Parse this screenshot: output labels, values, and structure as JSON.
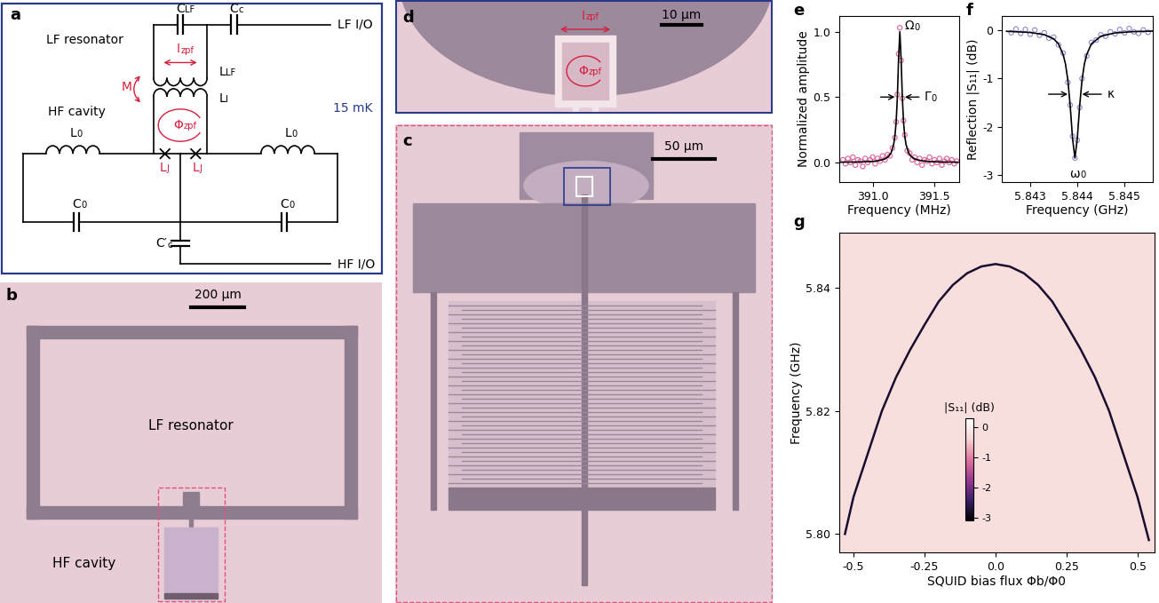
{
  "panels": {
    "a": {
      "label": "a",
      "temperature": "15 mK",
      "labels": {
        "LF_resonator": "LF resonator",
        "HF_cavity": "HF cavity",
        "LF_IO": "LF I/O",
        "HF_IO": "HF I/O",
        "C_LF": {
          "main": "C",
          "sub": "LF"
        },
        "C_c": {
          "main": "C",
          "sub": "c"
        },
        "L_LF": {
          "main": "L",
          "sub": "LF"
        },
        "L_I": {
          "main": "L",
          "sub": "I"
        },
        "L_J": {
          "main": "L",
          "sub": "J"
        },
        "L_0": {
          "main": "L",
          "sub": "0"
        },
        "C_0": {
          "main": "C",
          "sub": "0"
        },
        "C_c_prime": {
          "main": "C′",
          "sub": "c"
        },
        "I_zpf": {
          "main": "I",
          "sub": "zpf"
        },
        "Phi_zpf": {
          "main": "Φ",
          "sub": "zpf"
        },
        "M": "M"
      }
    },
    "b": {
      "label": "b",
      "scale_bar": "200 µm",
      "texts": [
        "LF resonator",
        "HF cavity"
      ]
    },
    "c": {
      "label": "c",
      "scale_bar": "50 µm"
    },
    "d": {
      "label": "d",
      "scale_bar": "10 µm",
      "I_zpf": {
        "main": "I",
        "sub": "zpf"
      },
      "Phi_zpf": {
        "main": "Φ",
        "sub": "zpf"
      }
    }
  },
  "chart_data": [
    {
      "label": "e",
      "type": "scatter",
      "xlabel": "Frequency (MHz)",
      "ylabel": "Normalized amplitude",
      "xlim": [
        390.73,
        391.7
      ],
      "ylim": [
        -0.15,
        1.12
      ],
      "xticks": [
        {
          "value": 391.0,
          "label": "391.0"
        },
        {
          "value": 391.5,
          "label": "391.5"
        }
      ],
      "yticks": [
        {
          "value": 0.0,
          "label": "0.0"
        },
        {
          "value": 0.5,
          "label": "0.5"
        },
        {
          "value": 1.0,
          "label": "1.0"
        }
      ],
      "annotations": [
        {
          "main": "Ω",
          "sub": "0"
        },
        {
          "main": "Γ",
          "sub": "0"
        }
      ],
      "series": [
        {
          "type": "scatter",
          "color": "#e0609a",
          "marker": "o",
          "x": [
            390.76,
            390.78,
            390.8,
            390.82,
            390.84,
            390.86,
            390.88,
            390.9,
            390.92,
            390.94,
            390.96,
            390.98,
            391.0,
            391.02,
            391.04,
            391.06,
            391.08,
            391.1,
            391.12,
            391.14,
            391.16,
            391.18,
            391.19,
            391.2,
            391.21,
            391.22,
            391.23,
            391.24,
            391.25,
            391.26,
            391.28,
            391.3,
            391.32,
            391.34,
            391.36,
            391.38,
            391.4,
            391.42,
            391.44,
            391.46,
            391.48,
            391.5,
            391.52,
            391.54,
            391.56,
            391.58,
            391.6,
            391.62,
            391.64,
            391.66,
            391.68
          ],
          "values": [
            0.02,
            -0.01,
            0.03,
            0.0,
            0.04,
            -0.02,
            0.02,
            0.01,
            -0.03,
            0.03,
            0.0,
            0.02,
            0.04,
            -0.01,
            0.03,
            0.01,
            0.05,
            0.02,
            0.06,
            0.05,
            0.11,
            0.19,
            0.31,
            0.52,
            0.83,
            1.03,
            0.78,
            0.49,
            0.32,
            0.21,
            0.09,
            0.07,
            0.02,
            0.04,
            0.0,
            0.03,
            -0.02,
            0.02,
            0.01,
            0.04,
            -0.01,
            0.02,
            0.0,
            0.03,
            -0.02,
            0.01,
            0.03,
            0.0,
            0.02,
            -0.01,
            0.01
          ]
        },
        {
          "type": "line",
          "color": "#000000",
          "line_style": "solid",
          "x": [
            390.74,
            390.9,
            391.0,
            391.05,
            391.1,
            391.13,
            391.15,
            391.17,
            391.18,
            391.19,
            391.2,
            391.21,
            391.22,
            391.23,
            391.24,
            391.25,
            391.26,
            391.27,
            391.29,
            391.31,
            391.34,
            391.39,
            391.45,
            391.5,
            391.6,
            391.69
          ],
          "values": [
            0.002,
            0.004,
            0.008,
            0.014,
            0.027,
            0.047,
            0.075,
            0.138,
            0.2,
            0.308,
            0.5,
            0.8,
            1.0,
            0.8,
            0.5,
            0.308,
            0.2,
            0.138,
            0.075,
            0.047,
            0.027,
            0.014,
            0.0075,
            0.005,
            0.003,
            0.002
          ]
        }
      ]
    },
    {
      "label": "f",
      "type": "scatter",
      "xlabel": "Frequency (GHz)",
      "ylabel": "Reflection |S₁₁| (dB)",
      "xlim": [
        5.8424,
        5.8456
      ],
      "ylim": [
        -3.15,
        0.3
      ],
      "xticks": [
        5.843,
        5.844,
        5.845
      ],
      "yticks": [
        -3,
        -2,
        -1,
        0
      ],
      "annotations": [
        {
          "main": "ω",
          "sub": "0"
        },
        "κ"
      ],
      "series": [
        {
          "type": "scatter",
          "color": "#8a8ad0",
          "marker": "o",
          "x": [
            5.8426,
            5.8427,
            5.8428,
            5.8429,
            5.843,
            5.8431,
            5.8432,
            5.8433,
            5.8434,
            5.8435,
            5.8436,
            5.8437,
            5.8438,
            5.84385,
            5.8439,
            5.84395,
            5.844,
            5.84405,
            5.8441,
            5.8442,
            5.8443,
            5.8444,
            5.8445,
            5.8446,
            5.8447,
            5.8448,
            5.8449,
            5.845,
            5.8451,
            5.8452,
            5.8453,
            5.8454,
            5.8455
          ],
          "values": [
            -0.05,
            0.03,
            -0.06,
            0.02,
            -0.08,
            0.01,
            -0.1,
            -0.05,
            -0.16,
            -0.14,
            -0.3,
            -0.47,
            -1.08,
            -1.55,
            -2.2,
            -2.65,
            -2.28,
            -1.6,
            -1.0,
            -0.53,
            -0.25,
            -0.2,
            -0.09,
            -0.12,
            -0.03,
            -0.07,
            0.02,
            -0.05,
            0.04,
            -0.03,
            -0.06,
            0.01,
            -0.04
          ]
        },
        {
          "type": "line",
          "color": "#000000",
          "line_style": "solid",
          "x": [
            5.8425,
            5.843,
            5.8433,
            5.8435,
            5.8436,
            5.8437,
            5.84375,
            5.8438,
            5.84385,
            5.8439,
            5.84395,
            5.844,
            5.84405,
            5.8441,
            5.84415,
            5.8442,
            5.8443,
            5.8445,
            5.8448,
            5.8452,
            5.8456
          ],
          "values": [
            -0.018,
            -0.042,
            -0.088,
            -0.176,
            -0.278,
            -0.5,
            -0.7,
            -1.03,
            -1.57,
            -2.25,
            -2.65,
            -2.25,
            -1.57,
            -1.03,
            -0.7,
            -0.5,
            -0.278,
            -0.12,
            -0.052,
            -0.024,
            -0.014
          ]
        }
      ]
    },
    {
      "label": "g",
      "type": "heatmap",
      "xlabel": "SQUID bias flux Φb/Φ0",
      "ylabel": "Frequency (GHz)",
      "xlim": [
        -0.55,
        0.56
      ],
      "ylim": [
        5.797,
        5.849
      ],
      "xticks": [
        -0.5,
        -0.25,
        0.0,
        0.25,
        0.5
      ],
      "yticks": [
        {
          "value": 5.8,
          "label": "5.80"
        },
        {
          "value": 5.82,
          "label": "5.82"
        },
        {
          "value": 5.84,
          "label": "5.84"
        }
      ],
      "background": -0.25,
      "colorbar": {
        "label": "|S₁₁| (dB)",
        "range": [
          -3.1,
          0.3
        ],
        "ticks": [
          -3,
          -2,
          -1,
          0
        ]
      },
      "series": [
        {
          "type": "line",
          "line_style": "solid",
          "level": -2.8,
          "x": [
            -0.53,
            -0.5,
            -0.45,
            -0.4,
            -0.35,
            -0.3,
            -0.25,
            -0.2,
            -0.15,
            -0.1,
            -0.05,
            0.0,
            0.05,
            0.1,
            0.15,
            0.2,
            0.25,
            0.3,
            0.35,
            0.4,
            0.45,
            0.5,
            0.54
          ],
          "values": [
            5.8,
            5.806,
            5.813,
            5.82,
            5.8255,
            5.83,
            5.834,
            5.8378,
            5.8405,
            5.8424,
            5.8435,
            5.8439,
            5.8435,
            5.8424,
            5.8405,
            5.8378,
            5.834,
            5.83,
            5.8255,
            5.82,
            5.813,
            5.806,
            5.799
          ]
        }
      ]
    }
  ]
}
